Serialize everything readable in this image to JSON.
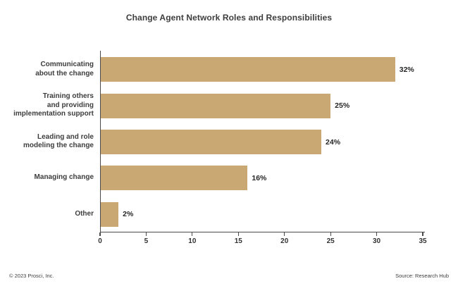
{
  "footer": {
    "left": "© 2023 Prosci, Inc.",
    "right": "Source: Research Hub"
  },
  "colors": {
    "bar": "#c9a873",
    "axis": "#4a4a4a",
    "title_text": "#3d3d3d",
    "label_text": "#3d3d3d",
    "value_text": "#262626",
    "tick_text": "#333333",
    "footer_text": "#3d3d3d",
    "background": "#ffffff"
  },
  "chart_data": {
    "type": "bar",
    "orientation": "horizontal",
    "title": "Change Agent Network Roles and Responsibilities",
    "categories": [
      "Communicating about the change",
      "Training others and providing implementation support",
      "Leading and role modeling the change",
      "Managing change",
      "Other"
    ],
    "category_lines": [
      [
        "Communicating",
        "about the change"
      ],
      [
        "Training others",
        "and providing",
        "implementation support"
      ],
      [
        "Leading and role",
        "modeling the change"
      ],
      [
        "Managing change"
      ],
      [
        "Other"
      ]
    ],
    "values": [
      32,
      25,
      24,
      16,
      2
    ],
    "value_labels": [
      "32%",
      "25%",
      "24%",
      "16%",
      "2%"
    ],
    "xlabel": "",
    "ylabel": "",
    "xlim": [
      0,
      35
    ],
    "x_ticks": [
      0,
      5,
      10,
      15,
      20,
      25,
      30,
      35
    ],
    "grid": false,
    "legend": false,
    "data_labels": true
  }
}
